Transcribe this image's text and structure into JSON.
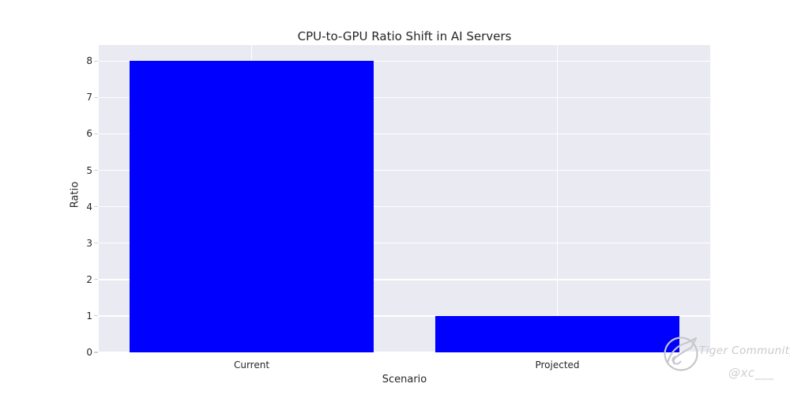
{
  "title": "CPU-to-GPU Ratio Shift in AI Servers",
  "watermark": {
    "brand": "Tiger Community",
    "handle": "@xc___",
    "logo": "tiger-community-circle-logo",
    "color": "#c9c9ce"
  },
  "chart_data": {
    "type": "bar",
    "title": "CPU-to-GPU Ratio Shift in AI Servers",
    "categories": [
      "Current",
      "Projected"
    ],
    "values": [
      8,
      1
    ],
    "xlabel": "Scenario",
    "ylabel": "Ratio",
    "ylim": [
      0,
      8.44
    ],
    "yticks": [
      0,
      1,
      2,
      3,
      4,
      5,
      6,
      7,
      8
    ],
    "bar_color": "#0000ff",
    "plot_bg": "#eaeaf2",
    "grid_color": "#ffffff",
    "text_color": "#262626",
    "grid": true,
    "legend": false,
    "bar_rel_width": 0.8
  }
}
